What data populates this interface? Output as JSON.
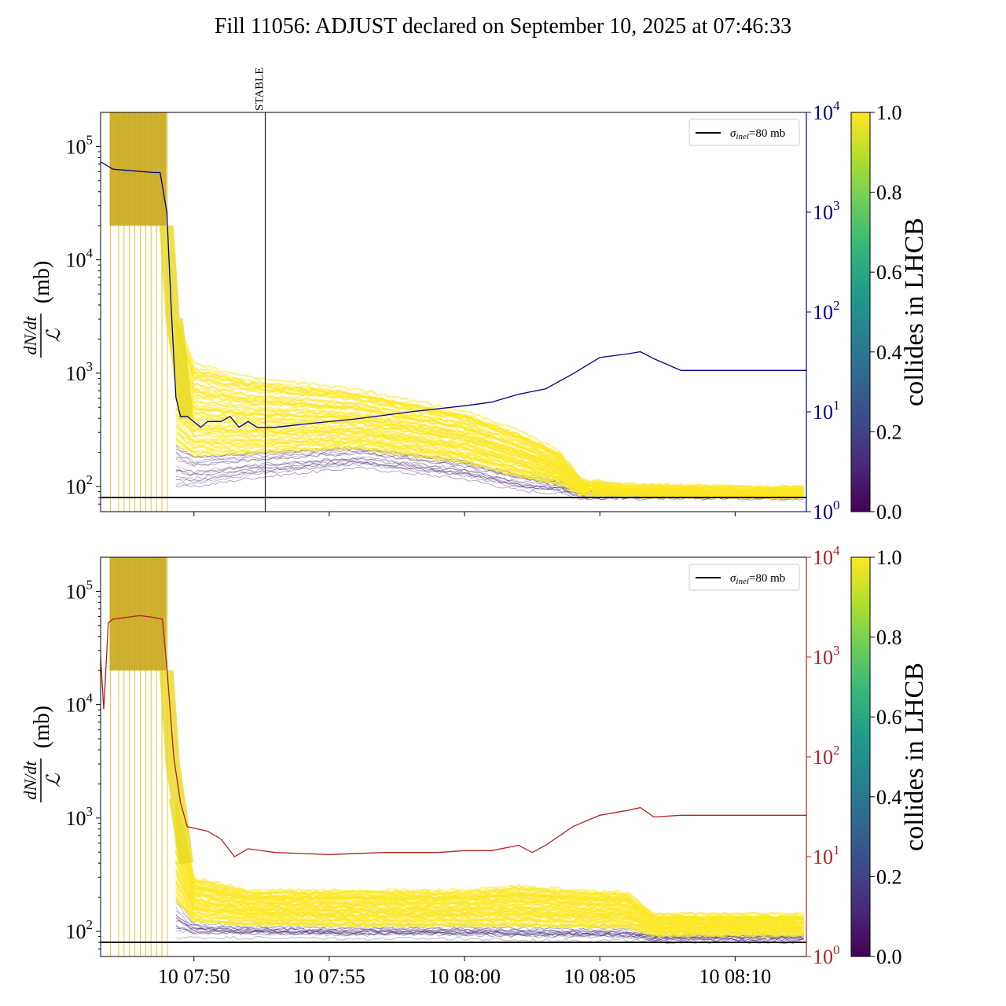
{
  "title": "Fill 11056: ADJUST declared on September 10, 2025 at 07:46:33",
  "colors": {
    "top_secondary": "#00008b",
    "bottom_secondary": "#b22222",
    "viridis": [
      "#440154",
      "#482878",
      "#3e4989",
      "#31688e",
      "#26828e",
      "#1f9e89",
      "#35b779",
      "#6ece58",
      "#b5de2b",
      "#fde725"
    ]
  },
  "chart_data": [
    {
      "type": "line",
      "panel": "top",
      "ylabel_num": "dN/dt",
      "ylabel_den": "ℒ",
      "ylabel_unit": "(mb)",
      "yscale": "log",
      "ylim": [
        60,
        200000
      ],
      "y_ticks": [
        {
          "base": "10",
          "exp": "2",
          "value": 100
        },
        {
          "base": "10",
          "exp": "3",
          "value": 1000
        },
        {
          "base": "10",
          "exp": "4",
          "value": 10000
        },
        {
          "base": "10",
          "exp": "5",
          "value": 100000
        }
      ],
      "xlim": [
        "2025-09-10 07:46:33",
        "2025-09-10 08:12:38"
      ],
      "x_ticks": [],
      "y2scale": "log",
      "y2lim": [
        1,
        10000
      ],
      "y2_ticks": [
        {
          "base": "10",
          "exp": "0",
          "value": 1
        },
        {
          "base": "10",
          "exp": "1",
          "value": 10
        },
        {
          "base": "10",
          "exp": "2",
          "value": 100
        },
        {
          "base": "10",
          "exp": "3",
          "value": 1000
        },
        {
          "base": "10",
          "exp": "4",
          "value": 10000
        }
      ],
      "legend": {
        "label_sym": "σ",
        "label_sub": "inel",
        "label_rest": "=80 mb",
        "position": "top-right"
      },
      "reference_line": {
        "y": 80
      },
      "annotation": {
        "label": "STABLE",
        "x": "2025-09-10 07:52:38"
      },
      "colorbar": {
        "label": "collides in LHCB",
        "ticks": [
          "0.0",
          "0.2",
          "0.4",
          "0.6",
          "0.8",
          "1.0"
        ]
      },
      "secondary_series": {
        "x": [
          "2025-09-10 07:46:33",
          "2025-09-10 07:47:00",
          "2025-09-10 07:48:30",
          "2025-09-10 07:48:45",
          "2025-09-10 07:49:00",
          "2025-09-10 07:49:10",
          "2025-09-10 07:49:20",
          "2025-09-10 07:49:30",
          "2025-09-10 07:49:45",
          "2025-09-10 07:50:15",
          "2025-09-10 07:50:30",
          "2025-09-10 07:51:00",
          "2025-09-10 07:51:20",
          "2025-09-10 07:51:40",
          "2025-09-10 07:52:00",
          "2025-09-10 07:52:20",
          "2025-09-10 07:53:00",
          "2025-09-10 07:54:00",
          "2025-09-10 07:56:00",
          "2025-09-10 07:58:00",
          "2025-09-10 08:00:00",
          "2025-09-10 08:01:00",
          "2025-09-10 08:02:00",
          "2025-09-10 08:03:00",
          "2025-09-10 08:04:00",
          "2025-09-10 08:05:00",
          "2025-09-10 08:06:00",
          "2025-09-10 08:06:30",
          "2025-09-10 08:07:00",
          "2025-09-10 08:08:00",
          "2025-09-10 08:10:00",
          "2025-09-10 08:12:38"
        ],
        "y": [
          3200,
          2700,
          2500,
          2500,
          1000,
          100,
          14,
          9,
          9,
          7,
          8,
          8,
          9,
          7,
          8,
          7,
          7,
          7.5,
          8.5,
          10,
          11.5,
          12.5,
          15,
          17,
          24,
          35,
          38,
          40,
          34,
          26,
          26,
          26
        ]
      },
      "band_summary": {
        "x": [
          "2025-09-10 07:49:20",
          "2025-09-10 07:50:00",
          "2025-09-10 07:52:00",
          "2025-09-10 07:56:00",
          "2025-09-10 08:00:00",
          "2025-09-10 08:02:00",
          "2025-09-10 08:03:30",
          "2025-09-10 08:04:20",
          "2025-09-10 08:06:00",
          "2025-09-10 08:10:00",
          "2025-09-10 08:12:38"
        ],
        "upper": [
          3000,
          1200,
          900,
          700,
          450,
          300,
          200,
          110,
          100,
          95,
          95
        ],
        "lower": [
          100,
          100,
          120,
          150,
          120,
          95,
          90,
          82,
          82,
          82,
          82
        ]
      }
    },
    {
      "type": "line",
      "panel": "bottom",
      "ylabel_num": "dN/dt",
      "ylabel_den": "ℒ",
      "ylabel_unit": "(mb)",
      "yscale": "log",
      "ylim": [
        60,
        200000
      ],
      "y_ticks": [
        {
          "base": "10",
          "exp": "2",
          "value": 100
        },
        {
          "base": "10",
          "exp": "3",
          "value": 1000
        },
        {
          "base": "10",
          "exp": "4",
          "value": 10000
        },
        {
          "base": "10",
          "exp": "5",
          "value": 100000
        }
      ],
      "xlim": [
        "2025-09-10 07:46:33",
        "2025-09-10 08:12:38"
      ],
      "x_ticks": [
        {
          "label": "10 07:50",
          "x": "2025-09-10 07:50:00"
        },
        {
          "label": "10 07:55",
          "x": "2025-09-10 07:55:00"
        },
        {
          "label": "10 08:00",
          "x": "2025-09-10 08:00:00"
        },
        {
          "label": "10 08:05",
          "x": "2025-09-10 08:05:00"
        },
        {
          "label": "10 08:10",
          "x": "2025-09-10 08:10:00"
        }
      ],
      "y2scale": "log",
      "y2lim": [
        1,
        10000
      ],
      "y2_ticks": [
        {
          "base": "10",
          "exp": "0",
          "value": 1
        },
        {
          "base": "10",
          "exp": "1",
          "value": 10
        },
        {
          "base": "10",
          "exp": "2",
          "value": 100
        },
        {
          "base": "10",
          "exp": "3",
          "value": 1000
        },
        {
          "base": "10",
          "exp": "4",
          "value": 10000
        }
      ],
      "legend": {
        "label_sym": "σ",
        "label_sub": "inel",
        "label_rest": "=80 mb",
        "position": "top-right"
      },
      "reference_line": {
        "y": 80
      },
      "colorbar": {
        "label": "collides in LHCB",
        "ticks": [
          "0.0",
          "0.2",
          "0.4",
          "0.6",
          "0.8",
          "1.0"
        ]
      },
      "secondary_series": {
        "x": [
          "2025-09-10 07:46:33",
          "2025-09-10 07:46:40",
          "2025-09-10 07:46:50",
          "2025-09-10 07:47:00",
          "2025-09-10 07:47:30",
          "2025-09-10 07:48:00",
          "2025-09-10 07:48:30",
          "2025-09-10 07:48:50",
          "2025-09-10 07:49:00",
          "2025-09-10 07:49:15",
          "2025-09-10 07:49:30",
          "2025-09-10 07:49:45",
          "2025-09-10 07:50:30",
          "2025-09-10 07:51:00",
          "2025-09-10 07:51:30",
          "2025-09-10 07:52:00",
          "2025-09-10 07:53:00",
          "2025-09-10 07:55:00",
          "2025-09-10 07:57:00",
          "2025-09-10 07:59:00",
          "2025-09-10 08:00:00",
          "2025-09-10 08:01:00",
          "2025-09-10 08:02:00",
          "2025-09-10 08:02:30",
          "2025-09-10 08:03:00",
          "2025-09-10 08:04:00",
          "2025-09-10 08:05:00",
          "2025-09-10 08:06:00",
          "2025-09-10 08:06:30",
          "2025-09-10 08:07:00",
          "2025-09-10 08:08:00",
          "2025-09-10 08:10:00",
          "2025-09-10 08:12:38"
        ],
        "y": [
          1000,
          300,
          2200,
          2400,
          2500,
          2600,
          2500,
          2400,
          800,
          100,
          35,
          20,
          18,
          15,
          10,
          12,
          11,
          10.5,
          11,
          11,
          11.5,
          11.5,
          13,
          11,
          13,
          20,
          26,
          29,
          31,
          25,
          26,
          26,
          26
        ]
      },
      "band_summary": {
        "x": [
          "2025-09-10 07:49:20",
          "2025-09-10 07:50:00",
          "2025-09-10 07:52:00",
          "2025-09-10 07:56:00",
          "2025-09-10 08:00:00",
          "2025-09-10 08:02:00",
          "2025-09-10 08:04:00",
          "2025-09-10 08:06:00",
          "2025-09-10 08:07:00",
          "2025-09-10 08:10:00",
          "2025-09-10 08:12:38"
        ],
        "upper": [
          1500,
          300,
          230,
          230,
          230,
          250,
          230,
          220,
          140,
          140,
          140
        ],
        "lower": [
          90,
          90,
          90,
          88,
          88,
          85,
          85,
          85,
          82,
          82,
          82
        ]
      }
    }
  ]
}
